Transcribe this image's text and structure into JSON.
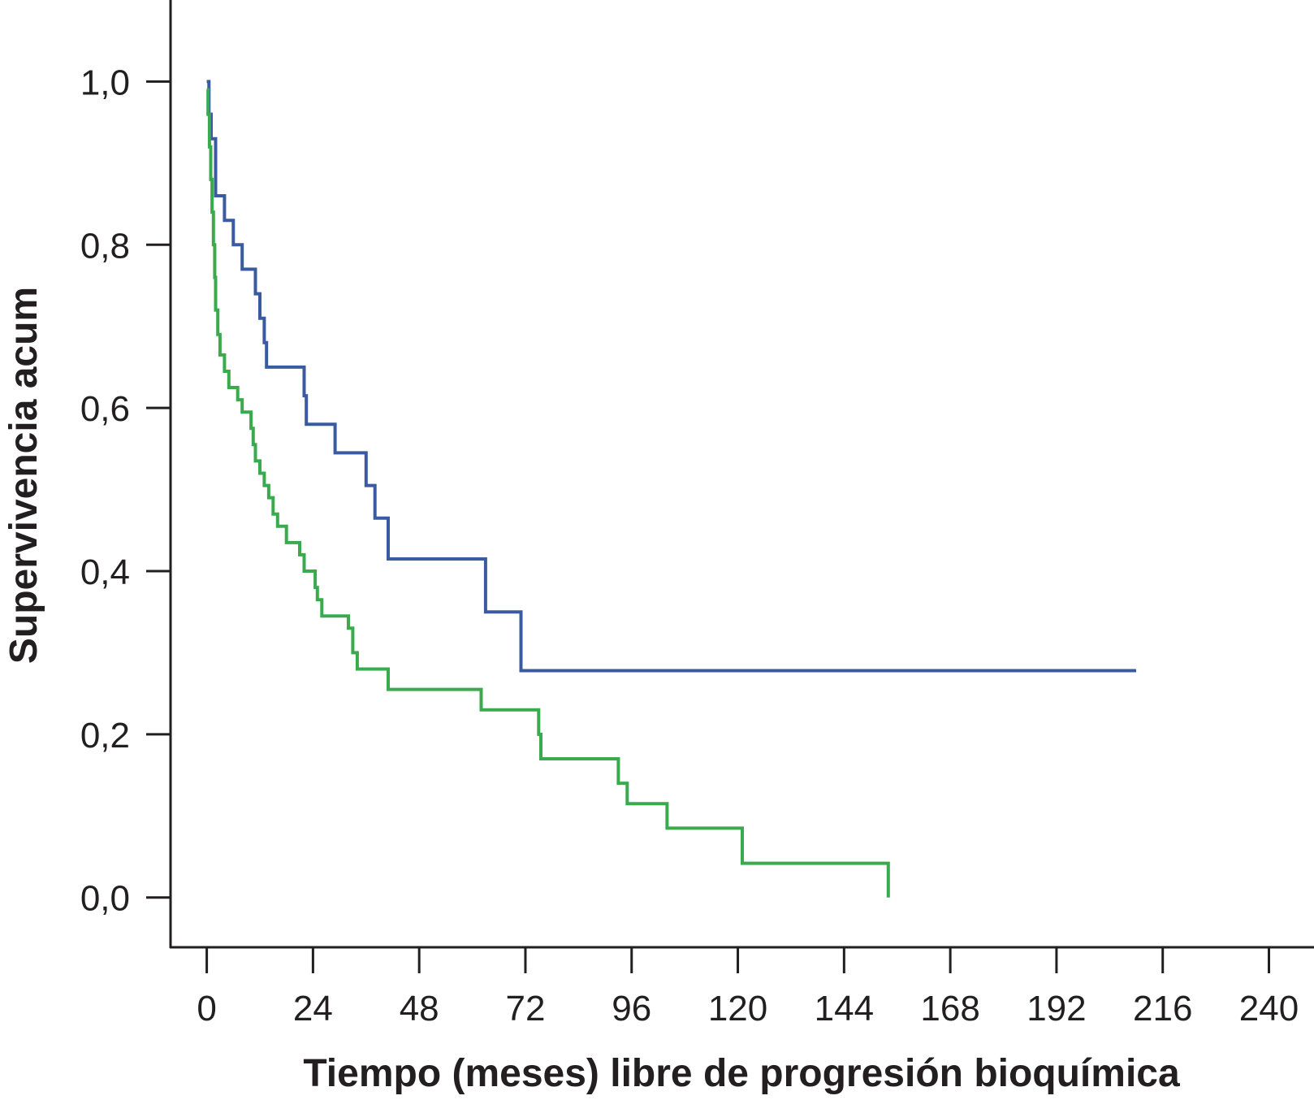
{
  "chart_data": {
    "type": "line",
    "step": true,
    "title": "",
    "xlabel": "Tiempo (meses) libre de progresión bioquímica",
    "ylabel": "Supervivencia acum",
    "xlim": [
      -8,
      250
    ],
    "ylim": [
      -0.06,
      1.1
    ],
    "xticks": [
      0,
      24,
      48,
      72,
      96,
      120,
      144,
      168,
      192,
      216,
      240
    ],
    "yticks": [
      0.0,
      0.2,
      0.4,
      0.6,
      0.8,
      1.0
    ],
    "xtick_labels": [
      "0",
      "24",
      "48",
      "72",
      "96",
      "120",
      "144",
      "168",
      "192",
      "216",
      "240"
    ],
    "ytick_labels": [
      "0,0",
      "0,2",
      "0,4",
      "0,6",
      "0,8",
      "1,0"
    ],
    "grid": false,
    "legend": "none",
    "series": [
      {
        "color": "#3a5ba0",
        "points": [
          [
            0,
            1.0
          ],
          [
            0.5,
            0.96
          ],
          [
            1,
            0.93
          ],
          [
            2,
            0.86
          ],
          [
            4,
            0.83
          ],
          [
            6,
            0.8
          ],
          [
            8,
            0.77
          ],
          [
            11,
            0.74
          ],
          [
            12,
            0.71
          ],
          [
            13,
            0.68
          ],
          [
            13.5,
            0.65
          ],
          [
            22,
            0.615
          ],
          [
            22.5,
            0.58
          ],
          [
            29,
            0.545
          ],
          [
            36,
            0.505
          ],
          [
            38,
            0.465
          ],
          [
            41,
            0.415
          ],
          [
            63,
            0.35
          ],
          [
            71,
            0.278
          ],
          [
            210,
            0.278
          ]
        ]
      },
      {
        "color": "#3aaa4e",
        "points": [
          [
            0,
            0.99
          ],
          [
            0.3,
            0.96
          ],
          [
            0.6,
            0.92
          ],
          [
            0.9,
            0.88
          ],
          [
            1.2,
            0.84
          ],
          [
            1.5,
            0.8
          ],
          [
            1.8,
            0.76
          ],
          [
            2,
            0.72
          ],
          [
            2.5,
            0.69
          ],
          [
            3,
            0.665
          ],
          [
            4,
            0.645
          ],
          [
            5,
            0.625
          ],
          [
            7,
            0.61
          ],
          [
            8,
            0.595
          ],
          [
            10,
            0.575
          ],
          [
            10.5,
            0.555
          ],
          [
            11,
            0.535
          ],
          [
            12,
            0.52
          ],
          [
            13,
            0.505
          ],
          [
            14,
            0.49
          ],
          [
            15,
            0.47
          ],
          [
            16,
            0.455
          ],
          [
            18,
            0.435
          ],
          [
            21,
            0.42
          ],
          [
            22,
            0.4
          ],
          [
            24.5,
            0.38
          ],
          [
            25,
            0.365
          ],
          [
            26,
            0.345
          ],
          [
            32,
            0.33
          ],
          [
            33,
            0.3
          ],
          [
            34,
            0.28
          ],
          [
            41,
            0.255
          ],
          [
            62,
            0.23
          ],
          [
            75,
            0.2
          ],
          [
            75.5,
            0.17
          ],
          [
            93,
            0.14
          ],
          [
            95,
            0.115
          ],
          [
            104,
            0.085
          ],
          [
            121,
            0.042
          ],
          [
            154,
            0.0
          ]
        ]
      }
    ]
  }
}
